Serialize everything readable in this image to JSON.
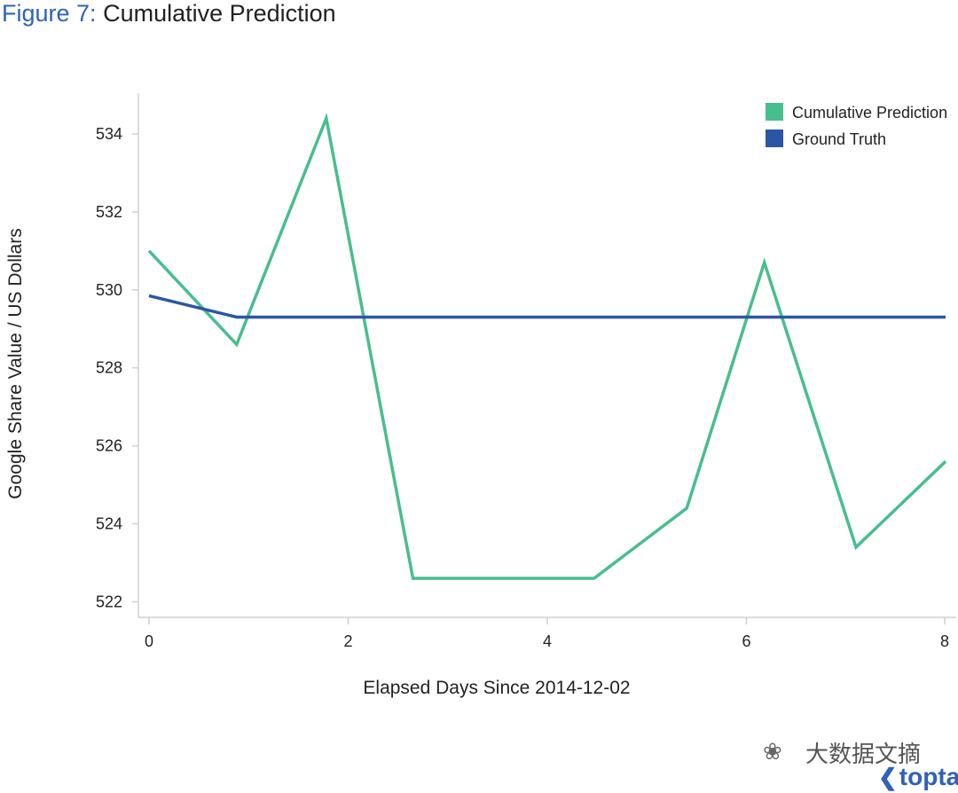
{
  "figure": {
    "label": "Figure 7:",
    "title": "Cumulative Prediction"
  },
  "watermark": {
    "text": "大数据文摘",
    "brand": "toptal"
  },
  "colors": {
    "cumulative_prediction": "#47be8e",
    "ground_truth": "#2a56a6",
    "axis": "#d0d0d0",
    "title_label": "#2f62b8"
  },
  "chart_data": {
    "type": "line",
    "xlabel": "Elapsed Days Since 2014-12-02",
    "ylabel": "Google Share Value / US Dollars",
    "xlim": [
      0,
      8
    ],
    "ylim": [
      521.6,
      535
    ],
    "x_ticks": [
      0,
      2,
      4,
      6,
      8
    ],
    "y_ticks": [
      522,
      524,
      526,
      528,
      530,
      532,
      534
    ],
    "grid": false,
    "legend_position": "top-right",
    "series": [
      {
        "name": "Cumulative Prediction",
        "color": "#47be8e",
        "x": [
          0,
          0.88,
          1.78,
          2.65,
          3.55,
          4.47,
          5.4,
          6.18,
          7.1,
          8.0
        ],
        "y": [
          531.0,
          528.6,
          534.4,
          522.6,
          522.6,
          522.6,
          524.4,
          530.7,
          523.4,
          525.6
        ]
      },
      {
        "name": "Ground Truth",
        "color": "#2a56a6",
        "x": [
          0,
          0.88,
          1.78,
          2.65,
          3.55,
          4.47,
          5.4,
          6.18,
          7.1,
          8.0
        ],
        "y": [
          529.85,
          529.3,
          529.3,
          529.3,
          529.3,
          529.3,
          529.3,
          529.3,
          529.3,
          529.3
        ]
      }
    ]
  }
}
